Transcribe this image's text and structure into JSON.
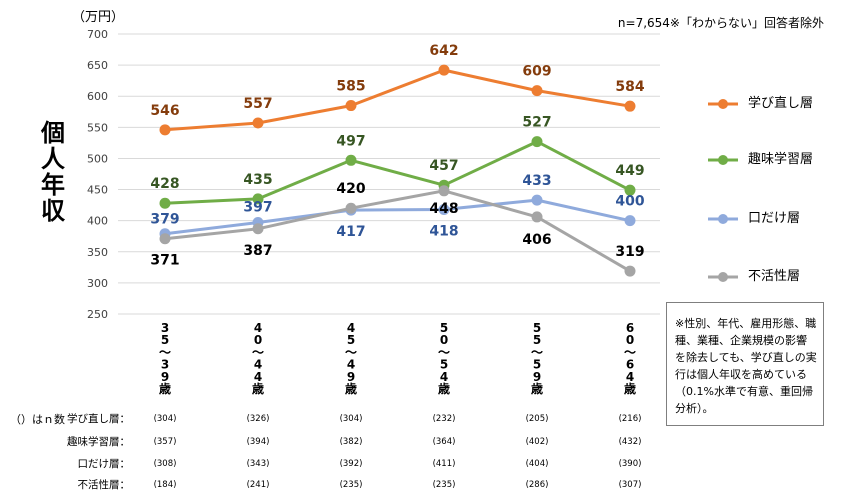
{
  "unit_label": "（万円）",
  "sample_note": "n=7,654※「わからない」回答者除外",
  "ylabel_chars": [
    "個",
    "人",
    "年",
    "収"
  ],
  "note_text": "※性別、年代、雇用形態、職種、業種、企業規模の影響を除去しても、学び直しの実行は個人年収を高めている（0.1%水準で有意、重回帰分析）。",
  "n_header": "（）はｎ数",
  "colors": {
    "学び直し層": "#ed7d31",
    "趣味学習層": "#70ad47",
    "口だけ層": "#8faadc",
    "不活性層": "#a5a5a5",
    "label_manabi": "#843c0c",
    "label_shumi": "#375623",
    "label_kuchi": "#2f5597",
    "label_fukatsu": "#000000",
    "grid": "#d9d9d9"
  },
  "chart_data": {
    "type": "line",
    "ylim": [
      250,
      700
    ],
    "yticks": [
      250,
      300,
      350,
      400,
      450,
      500,
      550,
      600,
      650,
      700
    ],
    "categories": [
      "35〜39歳",
      "40〜44歳",
      "45〜49歳",
      "50〜54歳",
      "55〜59歳",
      "60〜64歳"
    ],
    "series": [
      {
        "name": "学び直し層",
        "values": [
          546,
          557,
          585,
          642,
          609,
          584
        ],
        "n": [
          "(304)",
          "(326)",
          "(304)",
          "(232)",
          "(205)",
          "(216)"
        ],
        "n_label": "学び直し層："
      },
      {
        "name": "趣味学習層",
        "values": [
          428,
          435,
          497,
          457,
          527,
          449
        ],
        "n": [
          "(357)",
          "(394)",
          "(382)",
          "(364)",
          "(402)",
          "(432)"
        ],
        "n_label": "趣味学習層："
      },
      {
        "name": "口だけ層",
        "values": [
          379,
          397,
          417,
          418,
          433,
          400
        ],
        "n": [
          "(308)",
          "(343)",
          "(392)",
          "(411)",
          "(404)",
          "(390)"
        ],
        "n_label": "口だけ層："
      },
      {
        "name": "不活性層",
        "values": [
          371,
          387,
          420,
          448,
          406,
          319
        ],
        "n": [
          "(184)",
          "(241)",
          "(235)",
          "(235)",
          "(286)",
          "(307)"
        ],
        "n_label": "不活性層："
      }
    ],
    "legend_position": "right"
  }
}
